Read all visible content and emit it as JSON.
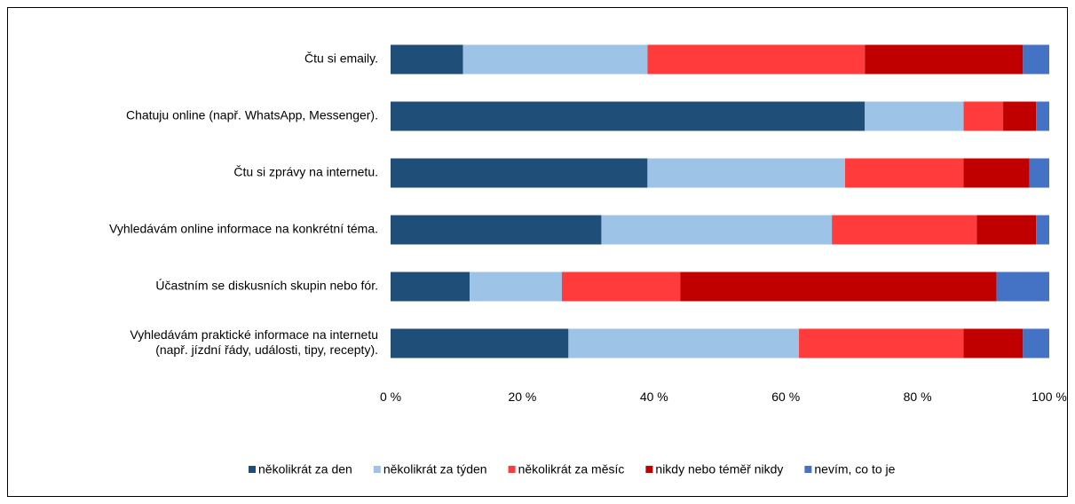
{
  "chart_data": {
    "type": "bar",
    "orientation": "horizontal",
    "stacked": "percent",
    "categories": [
      "Čtu si emaily.",
      "Chatuju online (např. WhatsApp, Messenger).",
      "Čtu si zprávy na internetu.",
      "Vyhledávám online informace na konkrétní téma.",
      "Účastním se diskusních skupin nebo fór.",
      [
        "Vyhledávám praktické informace na internetu",
        "(např. jízdní řády, události, tipy, recepty)."
      ]
    ],
    "series": [
      {
        "name": "několikrát za den",
        "color": "#1F4E79",
        "values": [
          11,
          72,
          39,
          32,
          12,
          27
        ]
      },
      {
        "name": "několikrát za týden",
        "color": "#9DC3E6",
        "values": [
          28,
          15,
          30,
          35,
          14,
          35
        ]
      },
      {
        "name": "několikrát za měsíc",
        "color": "#FF3B3B",
        "values": [
          33,
          6,
          18,
          22,
          18,
          25
        ]
      },
      {
        "name": "nikdy nebo téměř nikdy",
        "color": "#C00000",
        "values": [
          24,
          5,
          10,
          9,
          48,
          9
        ]
      },
      {
        "name": "nevím, co to je",
        "color": "#4472C4",
        "values": [
          4,
          2,
          3,
          2,
          8,
          4
        ]
      }
    ],
    "xlim": [
      0,
      100
    ],
    "xticks": [
      0,
      20,
      40,
      60,
      80,
      100
    ],
    "xtick_labels": [
      "0 %",
      "20 %",
      "40 %",
      "60 %",
      "80 %",
      "100 %"
    ],
    "grid": false,
    "legend_position": "bottom-right"
  }
}
